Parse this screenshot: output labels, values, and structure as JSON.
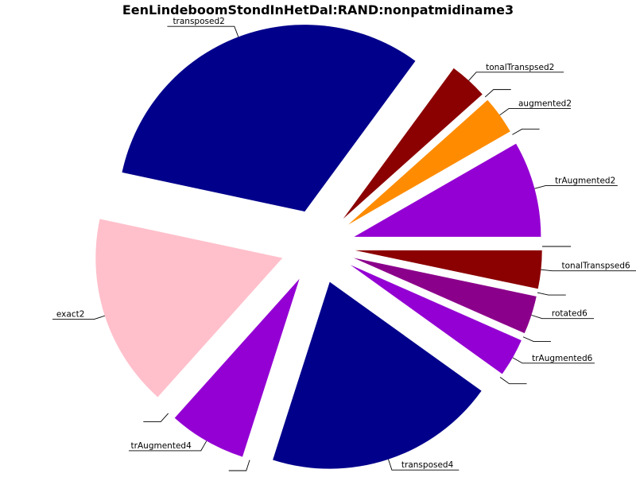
{
  "chart_data": {
    "type": "pie",
    "title": "EenLindeboomStondInHetDal:RAND:nonpatmidiname3",
    "slices": [
      {
        "label": "",
        "value": 0,
        "color": "#8b0000"
      },
      {
        "label": "trAugmented2",
        "value": 8.3,
        "color": "#9400d3"
      },
      {
        "label": "",
        "value": 0,
        "color": "#ff8c00"
      },
      {
        "label": "augmented2",
        "value": 3.3,
        "color": "#ff8c00"
      },
      {
        "label": "",
        "value": 0,
        "color": "#8b0000"
      },
      {
        "label": "tonalTranspsed2",
        "value": 3.3,
        "color": "#8b0000"
      },
      {
        "label": "transposed2",
        "value": 31.7,
        "color": "#00008b"
      },
      {
        "label": "exact2",
        "value": 16.7,
        "color": "#ffc0cb"
      },
      {
        "label": "",
        "value": 0,
        "color": "#ffc0cb"
      },
      {
        "label": "trAugmented4",
        "value": 6.7,
        "color": "#9400d3"
      },
      {
        "label": "",
        "value": 0,
        "color": "#9400d3"
      },
      {
        "label": "transposed4",
        "value": 20.0,
        "color": "#00008b"
      },
      {
        "label": "",
        "value": 0,
        "color": "#00008b"
      },
      {
        "label": "trAugmented6",
        "value": 3.3,
        "color": "#9400d3"
      },
      {
        "label": "",
        "value": 0,
        "color": "#8b008b"
      },
      {
        "label": "rotated6",
        "value": 3.3,
        "color": "#8b008b"
      },
      {
        "label": "",
        "value": 0,
        "color": "#8b0000"
      },
      {
        "label": "tonalTranspsed6",
        "value": 3.3,
        "color": "#8b0000"
      }
    ]
  }
}
